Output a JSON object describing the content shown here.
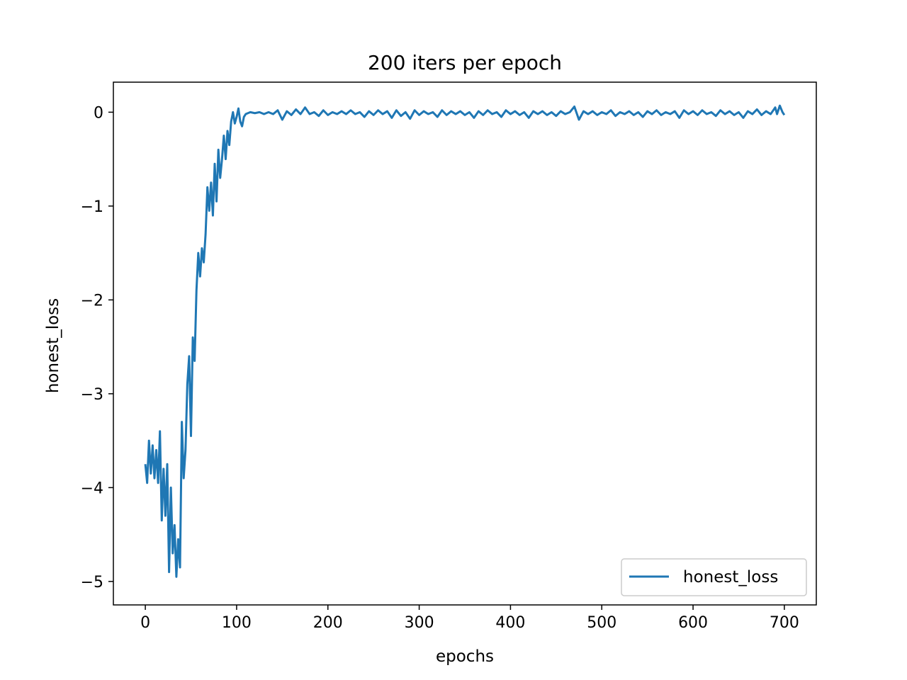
{
  "chart_data": {
    "type": "line",
    "title": "200 iters per epoch",
    "xlabel": "epochs",
    "ylabel": "honest_loss",
    "xlim": [
      -35,
      735
    ],
    "ylim": [
      -5.25,
      0.32
    ],
    "xticks": [
      0,
      100,
      200,
      300,
      400,
      500,
      600,
      700
    ],
    "xtick_labels": [
      "0",
      "100",
      "200",
      "300",
      "400",
      "500",
      "600",
      "700"
    ],
    "yticks": [
      0,
      -1,
      -2,
      -3,
      -4,
      -5
    ],
    "ytick_labels": [
      "0",
      "−1",
      "−2",
      "−3",
      "−4",
      "−5"
    ],
    "grid": false,
    "legend_position": "lower-right",
    "series": [
      {
        "name": "honest_loss",
        "color": "#1f77b4",
        "points": [
          [
            0,
            -3.75
          ],
          [
            2,
            -3.95
          ],
          [
            4,
            -3.5
          ],
          [
            6,
            -3.85
          ],
          [
            8,
            -3.55
          ],
          [
            10,
            -3.9
          ],
          [
            12,
            -3.6
          ],
          [
            14,
            -3.95
          ],
          [
            16,
            -3.4
          ],
          [
            18,
            -4.35
          ],
          [
            20,
            -3.8
          ],
          [
            22,
            -4.3
          ],
          [
            24,
            -3.75
          ],
          [
            26,
            -4.9
          ],
          [
            28,
            -4.0
          ],
          [
            30,
            -4.7
          ],
          [
            32,
            -4.4
          ],
          [
            34,
            -4.95
          ],
          [
            36,
            -4.55
          ],
          [
            38,
            -4.85
          ],
          [
            40,
            -3.3
          ],
          [
            42,
            -3.9
          ],
          [
            44,
            -3.6
          ],
          [
            46,
            -2.9
          ],
          [
            48,
            -2.6
          ],
          [
            50,
            -3.45
          ],
          [
            52,
            -2.4
          ],
          [
            54,
            -2.65
          ],
          [
            56,
            -1.9
          ],
          [
            58,
            -1.5
          ],
          [
            60,
            -1.75
          ],
          [
            62,
            -1.45
          ],
          [
            64,
            -1.6
          ],
          [
            66,
            -1.3
          ],
          [
            68,
            -0.8
          ],
          [
            70,
            -1.05
          ],
          [
            72,
            -0.75
          ],
          [
            74,
            -1.1
          ],
          [
            76,
            -0.55
          ],
          [
            78,
            -0.95
          ],
          [
            80,
            -0.4
          ],
          [
            82,
            -0.7
          ],
          [
            84,
            -0.5
          ],
          [
            86,
            -0.25
          ],
          [
            88,
            -0.5
          ],
          [
            90,
            -0.2
          ],
          [
            92,
            -0.35
          ],
          [
            94,
            -0.1
          ],
          [
            96,
            0.0
          ],
          [
            98,
            -0.12
          ],
          [
            100,
            -0.05
          ],
          [
            102,
            0.04
          ],
          [
            104,
            -0.1
          ],
          [
            106,
            -0.15
          ],
          [
            108,
            -0.05
          ],
          [
            110,
            -0.02
          ],
          [
            115,
            0.0
          ],
          [
            120,
            -0.01
          ],
          [
            125,
            0.0
          ],
          [
            130,
            -0.02
          ],
          [
            135,
            0.0
          ],
          [
            140,
            -0.02
          ],
          [
            145,
            0.02
          ],
          [
            150,
            -0.08
          ],
          [
            155,
            0.01
          ],
          [
            160,
            -0.03
          ],
          [
            165,
            0.03
          ],
          [
            170,
            -0.02
          ],
          [
            175,
            0.05
          ],
          [
            180,
            -0.02
          ],
          [
            185,
            0.0
          ],
          [
            190,
            -0.04
          ],
          [
            195,
            0.02
          ],
          [
            200,
            -0.03
          ],
          [
            205,
            0.0
          ],
          [
            210,
            -0.02
          ],
          [
            215,
            0.01
          ],
          [
            220,
            -0.02
          ],
          [
            225,
            0.02
          ],
          [
            230,
            -0.02
          ],
          [
            235,
            0.0
          ],
          [
            240,
            -0.05
          ],
          [
            245,
            0.01
          ],
          [
            250,
            -0.03
          ],
          [
            255,
            0.02
          ],
          [
            260,
            -0.02
          ],
          [
            265,
            0.01
          ],
          [
            270,
            -0.06
          ],
          [
            275,
            0.02
          ],
          [
            280,
            -0.04
          ],
          [
            285,
            0.0
          ],
          [
            290,
            -0.07
          ],
          [
            295,
            0.02
          ],
          [
            300,
            -0.03
          ],
          [
            305,
            0.01
          ],
          [
            310,
            -0.02
          ],
          [
            315,
            0.0
          ],
          [
            320,
            -0.05
          ],
          [
            325,
            0.02
          ],
          [
            330,
            -0.03
          ],
          [
            335,
            0.01
          ],
          [
            340,
            -0.02
          ],
          [
            345,
            0.01
          ],
          [
            350,
            -0.03
          ],
          [
            355,
            0.0
          ],
          [
            360,
            -0.06
          ],
          [
            365,
            0.01
          ],
          [
            370,
            -0.03
          ],
          [
            375,
            0.02
          ],
          [
            380,
            -0.02
          ],
          [
            385,
            0.0
          ],
          [
            390,
            -0.05
          ],
          [
            395,
            0.02
          ],
          [
            400,
            -0.02
          ],
          [
            405,
            0.01
          ],
          [
            410,
            -0.03
          ],
          [
            415,
            0.0
          ],
          [
            420,
            -0.06
          ],
          [
            425,
            0.01
          ],
          [
            430,
            -0.02
          ],
          [
            435,
            0.01
          ],
          [
            440,
            -0.03
          ],
          [
            445,
            0.0
          ],
          [
            450,
            -0.04
          ],
          [
            455,
            0.01
          ],
          [
            460,
            -0.02
          ],
          [
            465,
            0.0
          ],
          [
            470,
            0.06
          ],
          [
            475,
            -0.08
          ],
          [
            480,
            0.01
          ],
          [
            485,
            -0.02
          ],
          [
            490,
            0.01
          ],
          [
            495,
            -0.03
          ],
          [
            500,
            0.0
          ],
          [
            505,
            -0.02
          ],
          [
            510,
            0.02
          ],
          [
            515,
            -0.04
          ],
          [
            520,
            0.0
          ],
          [
            525,
            -0.02
          ],
          [
            530,
            0.01
          ],
          [
            535,
            -0.03
          ],
          [
            540,
            0.0
          ],
          [
            545,
            -0.05
          ],
          [
            550,
            0.01
          ],
          [
            555,
            -0.02
          ],
          [
            560,
            0.02
          ],
          [
            565,
            -0.03
          ],
          [
            570,
            0.0
          ],
          [
            575,
            -0.02
          ],
          [
            580,
            0.01
          ],
          [
            585,
            -0.06
          ],
          [
            590,
            0.02
          ],
          [
            595,
            -0.02
          ],
          [
            600,
            0.01
          ],
          [
            605,
            -0.03
          ],
          [
            610,
            0.02
          ],
          [
            615,
            -0.02
          ],
          [
            620,
            0.0
          ],
          [
            625,
            -0.04
          ],
          [
            630,
            0.02
          ],
          [
            635,
            -0.02
          ],
          [
            640,
            0.01
          ],
          [
            645,
            -0.03
          ],
          [
            650,
            0.0
          ],
          [
            655,
            -0.06
          ],
          [
            660,
            0.01
          ],
          [
            665,
            -0.02
          ],
          [
            670,
            0.03
          ],
          [
            675,
            -0.03
          ],
          [
            680,
            0.01
          ],
          [
            685,
            -0.02
          ],
          [
            690,
            0.05
          ],
          [
            692,
            -0.02
          ],
          [
            695,
            0.07
          ],
          [
            698,
            0.0
          ],
          [
            700,
            -0.03
          ]
        ]
      }
    ]
  }
}
